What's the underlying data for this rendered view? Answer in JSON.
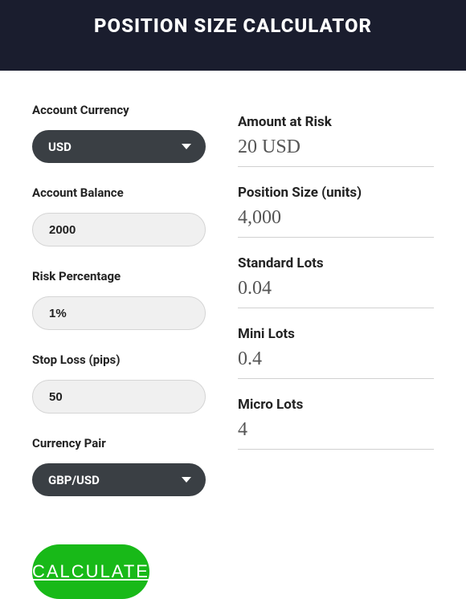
{
  "header": {
    "title": "POSITION SIZE CALCULATOR"
  },
  "inputs": {
    "account_currency": {
      "label": "Account Currency",
      "value": "USD"
    },
    "account_balance": {
      "label": "Account Balance",
      "value": "2000"
    },
    "risk_percentage": {
      "label": "Risk Percentage",
      "value": "1%"
    },
    "stop_loss": {
      "label": "Stop Loss (pips)",
      "value": "50"
    },
    "currency_pair": {
      "label": "Currency Pair",
      "value": "GBP/USD"
    }
  },
  "results": {
    "amount_at_risk": {
      "label": "Amount at Risk",
      "value": "20 USD"
    },
    "position_size": {
      "label": "Position Size (units)",
      "value": "4,000"
    },
    "standard_lots": {
      "label": "Standard Lots",
      "value": "0.04"
    },
    "mini_lots": {
      "label": "Mini Lots",
      "value": "0.4"
    },
    "micro_lots": {
      "label": "Micro Lots",
      "value": "4"
    }
  },
  "button": {
    "calculate": "CALCULATE"
  },
  "colors": {
    "header_bg": "#1a1d2e",
    "select_bg": "#3a3f44",
    "input_bg": "#f0f0f0",
    "input_border": "#d5d5d5",
    "divider": "#d0d0d0",
    "button_bg": "#18b918",
    "result_value": "#555555"
  }
}
